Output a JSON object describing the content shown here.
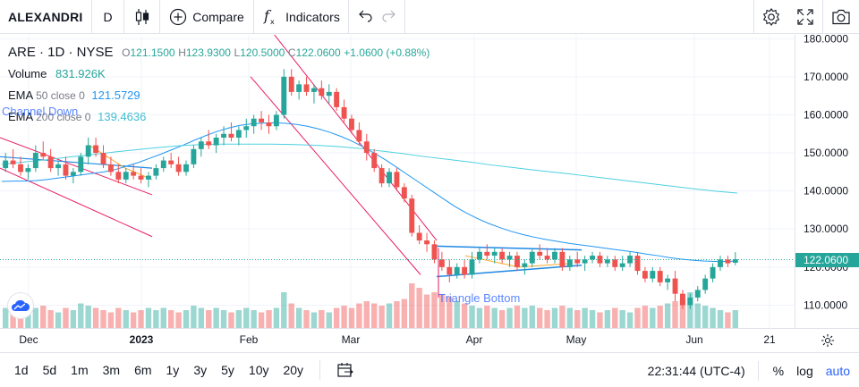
{
  "toolbar": {
    "symbol": "ALEXANDRI",
    "interval": "D",
    "compare_label": "Compare",
    "indicators_label": "Indicators",
    "icons": [
      "candles-icon",
      "plus-circle-icon",
      "fx-icon",
      "undo-icon",
      "redo-icon",
      "settings-icon",
      "fullscreen-icon",
      "camera-icon"
    ]
  },
  "legend": {
    "symbol_line": "ARE · 1D · NYSE",
    "open_label": "O",
    "open": "121.1500",
    "high_label": "H",
    "high": "123.9300",
    "low_label": "L",
    "low": "120.5000",
    "close_label": "C",
    "close": "122.0600",
    "change": "+1.0600 (+0.88%)",
    "volume_label": "Volume",
    "volume": "831.926K",
    "ema50_label": "EMA",
    "ema50_params": "50 close 0",
    "ema50_value": "121.5729",
    "ema200_label": "EMA",
    "ema200_params": "200 close 0",
    "ema200_value": "139.4636"
  },
  "drawings": {
    "channel_label": "Channel Down",
    "triangle_label": "Triangle Bottom"
  },
  "price_axis": {
    "ticks": [
      "180.0000",
      "170.0000",
      "160.0000",
      "150.0000",
      "140.0000",
      "130.0000",
      "120.0000",
      "110.0000"
    ],
    "last_price": "122.0600"
  },
  "time_axis": {
    "ticks": [
      "Dec",
      "2023",
      "Feb",
      "Mar",
      "Apr",
      "May",
      "Jun",
      "21"
    ]
  },
  "bottom_bar": {
    "ranges": [
      "1d",
      "5d",
      "1m",
      "3m",
      "6m",
      "1y",
      "3y",
      "5y",
      "10y",
      "20y"
    ],
    "time": "22:31:44 (UTC-4)",
    "percent_label": "%",
    "log_label": "log",
    "auto_label": "auto"
  },
  "colors": {
    "up": "#26a69a",
    "down": "#ef5350",
    "ema50": "#2196f3",
    "ema200": "#4dd0e1",
    "channel": "#e91e63",
    "triangle": "#1e88e5"
  },
  "chart_data": {
    "type": "candlestick",
    "ylim": [
      104,
      181
    ],
    "candles": [
      [
        146,
        150,
        145,
        148
      ],
      [
        148,
        151,
        146,
        147
      ],
      [
        147,
        149,
        144,
        145
      ],
      [
        145,
        147,
        143,
        146
      ],
      [
        146,
        152,
        145,
        150
      ],
      [
        150,
        153,
        148,
        149
      ],
      [
        149,
        151,
        145,
        146
      ],
      [
        146,
        148,
        144,
        147
      ],
      [
        147,
        149,
        143,
        144
      ],
      [
        144,
        146,
        142,
        145
      ],
      [
        145,
        150,
        144,
        149
      ],
      [
        149,
        154,
        147,
        152
      ],
      [
        152,
        154,
        149,
        150
      ],
      [
        150,
        152,
        146,
        147
      ],
      [
        147,
        149,
        144,
        145
      ],
      [
        145,
        147,
        142,
        143
      ],
      [
        143,
        146,
        142,
        145
      ],
      [
        145,
        147,
        143,
        144
      ],
      [
        144,
        146,
        142,
        143
      ],
      [
        143,
        145,
        141,
        144
      ],
      [
        144,
        147,
        143,
        146
      ],
      [
        146,
        149,
        145,
        148
      ],
      [
        148,
        150,
        146,
        147
      ],
      [
        147,
        149,
        144,
        145
      ],
      [
        145,
        148,
        144,
        147
      ],
      [
        147,
        152,
        146,
        151
      ],
      [
        151,
        154,
        149,
        153
      ],
      [
        153,
        156,
        151,
        152
      ],
      [
        152,
        155,
        150,
        154
      ],
      [
        154,
        157,
        152,
        155
      ],
      [
        155,
        158,
        153,
        154
      ],
      [
        154,
        157,
        152,
        156
      ],
      [
        156,
        159,
        154,
        157
      ],
      [
        157,
        160,
        155,
        159
      ],
      [
        159,
        161,
        156,
        158
      ],
      [
        158,
        160,
        155,
        157
      ],
      [
        157,
        161,
        156,
        160
      ],
      [
        160,
        172,
        159,
        170
      ],
      [
        170,
        172,
        165,
        166
      ],
      [
        166,
        169,
        164,
        168
      ],
      [
        168,
        170,
        165,
        166
      ],
      [
        166,
        168,
        163,
        167
      ],
      [
        167,
        169,
        164,
        165
      ],
      [
        165,
        168,
        163,
        166
      ],
      [
        166,
        167,
        161,
        162
      ],
      [
        162,
        164,
        158,
        159
      ],
      [
        159,
        160,
        155,
        156
      ],
      [
        156,
        158,
        152,
        153
      ],
      [
        153,
        155,
        148,
        150
      ],
      [
        150,
        151,
        145,
        146
      ],
      [
        146,
        147,
        141,
        142
      ],
      [
        142,
        146,
        141,
        145
      ],
      [
        145,
        146,
        140,
        141
      ],
      [
        141,
        142,
        137,
        138
      ],
      [
        138,
        139,
        128,
        129
      ],
      [
        129,
        131,
        126,
        127
      ],
      [
        127,
        129,
        124,
        126
      ],
      [
        126,
        127,
        121,
        122
      ],
      [
        122,
        124,
        119,
        120
      ],
      [
        120,
        122,
        116,
        118
      ],
      [
        118,
        121,
        117,
        120
      ],
      [
        120,
        122,
        117,
        118
      ],
      [
        118,
        124,
        117,
        122
      ],
      [
        122,
        125,
        121,
        124
      ],
      [
        124,
        126,
        122,
        123
      ],
      [
        123,
        125,
        121,
        124
      ],
      [
        124,
        125,
        121,
        122
      ],
      [
        122,
        124,
        120,
        123
      ],
      [
        123,
        124,
        119,
        120
      ],
      [
        120,
        122,
        118,
        121
      ],
      [
        121,
        125,
        120,
        124
      ],
      [
        124,
        126,
        122,
        123
      ],
      [
        123,
        125,
        121,
        122
      ],
      [
        122,
        125,
        121,
        124
      ],
      [
        124,
        125,
        119,
        120
      ],
      [
        120,
        123,
        119,
        122
      ],
      [
        122,
        124,
        120,
        121
      ],
      [
        121,
        123,
        119,
        122
      ],
      [
        122,
        124,
        121,
        123
      ],
      [
        123,
        124,
        120,
        121
      ],
      [
        121,
        123,
        120,
        122
      ],
      [
        122,
        123,
        119,
        120
      ],
      [
        120,
        123,
        119,
        121
      ],
      [
        121,
        124,
        120,
        123
      ],
      [
        123,
        124,
        118,
        119
      ],
      [
        119,
        120,
        116,
        117
      ],
      [
        117,
        120,
        116,
        119
      ],
      [
        119,
        120,
        115,
        116
      ],
      [
        116,
        118,
        114,
        117
      ],
      [
        117,
        119,
        111,
        113
      ],
      [
        113,
        114,
        109,
        110
      ],
      [
        110,
        113,
        109,
        112
      ],
      [
        112,
        115,
        111,
        114
      ],
      [
        114,
        118,
        113,
        117
      ],
      [
        117,
        121,
        116,
        120
      ],
      [
        120,
        123,
        119,
        122
      ],
      [
        122,
        123,
        120,
        121
      ],
      [
        121.15,
        123.93,
        120.5,
        122.06
      ]
    ],
    "volume": [
      0.9,
      0.8,
      0.7,
      0.8,
      0.9,
      1.0,
      0.8,
      0.7,
      0.9,
      0.8,
      1.1,
      1.0,
      0.9,
      0.8,
      0.7,
      0.9,
      0.8,
      0.7,
      0.8,
      0.9,
      0.8,
      0.9,
      0.8,
      0.7,
      0.8,
      1.0,
      0.9,
      0.8,
      0.9,
      0.8,
      0.7,
      0.8,
      0.9,
      0.8,
      0.7,
      0.8,
      0.9,
      1.6,
      1.1,
      0.9,
      0.8,
      0.7,
      0.8,
      0.7,
      0.9,
      1.0,
      0.9,
      1.1,
      1.2,
      1.1,
      1.0,
      1.1,
      1.2,
      1.3,
      2.0,
      1.8,
      1.5,
      1.6,
      1.5,
      1.4,
      1.2,
      1.1,
      1.0,
      0.9,
      1.0,
      0.9,
      0.8,
      0.9,
      1.0,
      0.9,
      1.0,
      0.9,
      0.8,
      0.9,
      1.0,
      0.9,
      0.8,
      0.9,
      0.8,
      0.7,
      0.8,
      0.9,
      0.8,
      0.7,
      0.9,
      1.0,
      0.9,
      1.0,
      1.1,
      1.2,
      1.3,
      1.6,
      1.1,
      1.0,
      0.9,
      0.8,
      0.7,
      0.8
    ],
    "ema50": [
      142.5,
      142.6,
      142.6,
      142.7,
      143.0,
      143.4,
      143.8,
      144.2,
      144.6,
      145.0,
      145.6,
      146.5,
      147.4,
      148.5,
      149.6,
      150.8,
      152.0,
      153.3,
      154.5,
      155.6,
      156.5,
      157.2,
      157.6,
      157.8,
      157.9,
      157.8,
      157.5,
      157.0,
      156.3,
      155.4,
      154.3,
      153.0,
      151.5,
      149.8,
      148.0,
      146.0,
      144.0,
      142.0,
      140.0,
      138.0,
      136.0,
      134.3,
      132.8,
      131.5,
      130.4,
      129.4,
      128.6,
      127.9,
      127.3,
      126.8,
      126.3,
      125.9,
      125.5,
      125.1,
      124.7,
      124.3,
      123.9,
      123.4,
      123.0,
      122.5,
      122.1,
      121.8,
      121.6,
      121.5,
      121.5,
      121.57
    ],
    "ema200": [
      147.0,
      147.6,
      148.2,
      148.9,
      149.5,
      150.2,
      150.8,
      151.4,
      151.9,
      152.2,
      152.3,
      152.3,
      152.3,
      152.2,
      152.0,
      151.7,
      151.2,
      150.5,
      149.8,
      149.0,
      148.3,
      147.6,
      146.8,
      146.1,
      145.4,
      144.8,
      144.1,
      143.4,
      142.7,
      142.0,
      141.3,
      140.6,
      139.95,
      139.46
    ]
  }
}
